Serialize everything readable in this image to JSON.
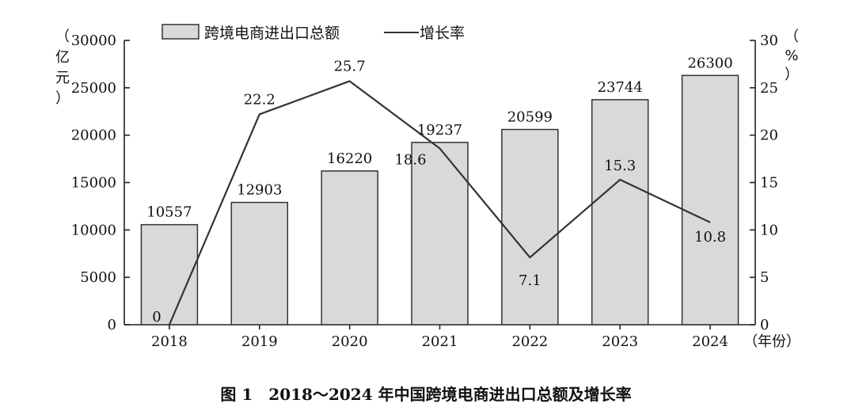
{
  "chart_data": {
    "type": "bar",
    "categories": [
      "2018",
      "2019",
      "2020",
      "2021",
      "2022",
      "2023",
      "2024"
    ],
    "x_unit": "年份",
    "series": [
      {
        "name": "跨境电商进出口总额",
        "type": "bar",
        "axis": "left",
        "values": [
          10557,
          12903,
          16220,
          19237,
          20599,
          23744,
          26300
        ]
      },
      {
        "name": "增长率",
        "type": "line",
        "axis": "right",
        "values": [
          0,
          22.2,
          25.7,
          18.6,
          7.1,
          15.3,
          10.8
        ]
      }
    ],
    "left_axis": {
      "unit": "亿元",
      "ylim": [
        0,
        30000
      ],
      "ticks": [
        0,
        5000,
        10000,
        15000,
        20000,
        25000,
        30000
      ]
    },
    "right_axis": {
      "unit": "%",
      "ylim": [
        0,
        30
      ],
      "ticks": [
        0,
        5,
        10,
        15,
        20,
        25,
        30
      ]
    },
    "legend": {
      "placement": "top-center",
      "bar_label": "跨境电商进出口总额",
      "line_label": "增长率"
    },
    "caption": "图 1　2018～2024 年中国跨境电商进出口总额及增长率",
    "grid": false,
    "colors": {
      "bar_fill": "#d9d9d9",
      "bar_stroke": "#333333",
      "line": "#333333",
      "axis": "#222222"
    }
  }
}
